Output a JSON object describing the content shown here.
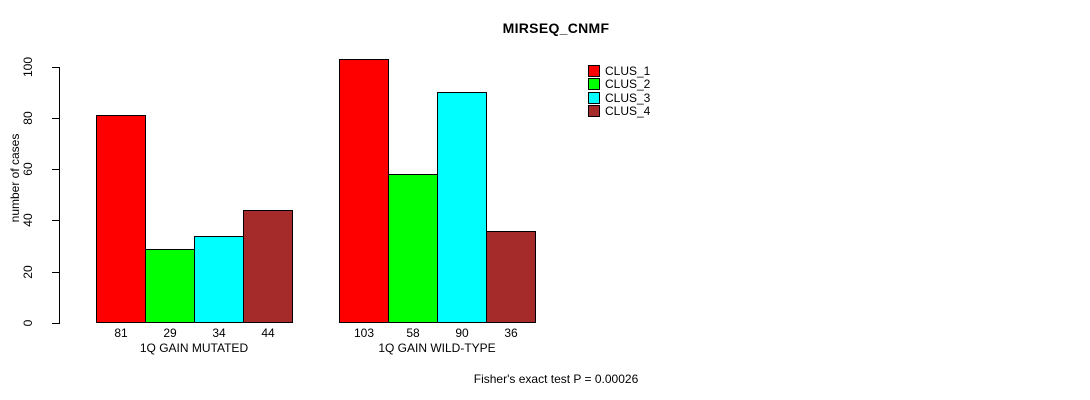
{
  "chart_data": {
    "type": "bar",
    "title": "MIRSEQ_CNMF",
    "ylabel": "number of cases",
    "xlabel": "",
    "ylim": [
      0,
      110
    ],
    "yticks": [
      0,
      20,
      40,
      60,
      80,
      100
    ],
    "grid": false,
    "legend_position": "right",
    "categories": [
      "1Q GAIN MUTATED",
      "1Q GAIN WILD-TYPE"
    ],
    "series": [
      {
        "name": "CLUS_1",
        "color": "#ff0000",
        "values": [
          81,
          103
        ]
      },
      {
        "name": "CLUS_2",
        "color": "#00ff00",
        "values": [
          29,
          58
        ]
      },
      {
        "name": "CLUS_3",
        "color": "#00ffff",
        "values": [
          34,
          90
        ]
      },
      {
        "name": "CLUS_4",
        "color": "#a52a2a",
        "values": [
          44,
          36
        ]
      }
    ],
    "bar_value_labels": [
      [
        "81",
        "29",
        "34",
        "44"
      ],
      [
        "103",
        "58",
        "90",
        "36"
      ]
    ],
    "annotation": "Fisher's exact test P = 0.00026"
  }
}
